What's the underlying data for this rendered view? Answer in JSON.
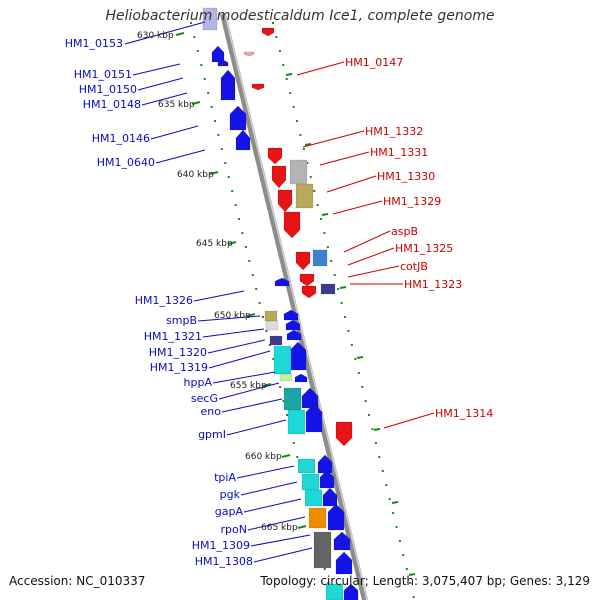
{
  "header": {
    "title": "Heliobacterium modesticaldum Ice1, complete genome"
  },
  "footer": {
    "accession": "Accession: NC_010337",
    "topology": "Topology: circular; Length: 3,075,407 bp; Genes: 3,129"
  },
  "colors": {
    "backbone": "#8c8c8c",
    "tick_green": "#1a8a1a",
    "reverse_label": "#0a0ac0",
    "forward_label": "#cc0000",
    "gene_blue": "#1414e6",
    "gene_red": "#e61414",
    "gene_cyan": "#1ed7d7",
    "gene_teal": "#1aa6a6",
    "gene_gray": "#b4b4b4",
    "gene_olive": "#b8aa5a",
    "gene_steel": "#3c82c8",
    "gene_slate": "#3c3c8c",
    "gene_orange": "#f08c00",
    "gene_darkgray": "#646464",
    "gene_lavender": "#b4b4e6"
  },
  "scale_labels": [
    "630 kbp",
    "635 kbp",
    "640 kbp",
    "645 kbp",
    "650 kbp",
    "655 kbp",
    "660 kbp",
    "665 kbp"
  ],
  "reverse_genes": [
    "HM1_0153",
    "HM1_0151",
    "HM1_0150",
    "HM1_0148",
    "HM1_0146",
    "HM1_0640",
    "HM1_1326",
    "smpB",
    "HM1_1321",
    "HM1_1320",
    "HM1_1319",
    "hppA",
    "secG",
    "eno",
    "gpmI",
    "tpiA",
    "pgk",
    "gapA",
    "rpoN",
    "HM1_1309",
    "HM1_1308"
  ],
  "forward_genes": [
    "HM1_0147",
    "HM1_1332",
    "HM1_1331",
    "HM1_1330",
    "HM1_1329",
    "aspB",
    "HM1_1325",
    "cotJB",
    "HM1_1323",
    "HM1_1314"
  ]
}
